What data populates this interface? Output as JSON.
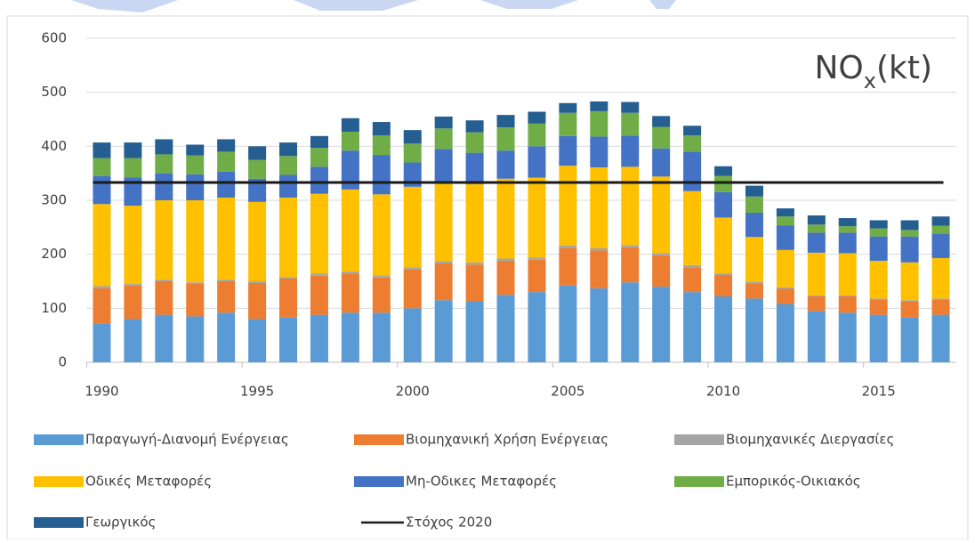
{
  "chart_data": {
    "type": "stacked_bar",
    "title": "NOx(kt)",
    "x": [
      1990,
      1991,
      1992,
      1993,
      1994,
      1995,
      1996,
      1997,
      1998,
      1999,
      2000,
      2001,
      2002,
      2003,
      2004,
      2005,
      2006,
      2007,
      2008,
      2009,
      2010,
      2011,
      2012,
      2013,
      2014,
      2015,
      2016,
      2017
    ],
    "xlim": [
      1989.5,
      2017.5
    ],
    "xticks": [
      1990,
      1995,
      2000,
      2005,
      2010,
      2015
    ],
    "ylim": [
      0,
      600
    ],
    "yticks": [
      0,
      100,
      200,
      300,
      400,
      500,
      600
    ],
    "grid": true,
    "legend": "bottom",
    "series": [
      {
        "name": "Παραγωγή-Διανομή Ενέργειας",
        "color": "#5b9bd5",
        "values": [
          72,
          80,
          88,
          85,
          92,
          80,
          83,
          88,
          92,
          92,
          100,
          115,
          113,
          125,
          130,
          142,
          137,
          148,
          140,
          130,
          122,
          118,
          108,
          95,
          92,
          88,
          83,
          88
        ]
      },
      {
        "name": "Βιομηχανική Χρήση Ενέργειας",
        "color": "#ed7d31",
        "values": [
          65,
          62,
          62,
          60,
          58,
          67,
          72,
          72,
          72,
          65,
          72,
          68,
          68,
          63,
          60,
          70,
          70,
          65,
          58,
          46,
          40,
          28,
          28,
          27,
          30,
          28,
          30,
          28
        ]
      },
      {
        "name": "Βιομηχανικές Διεργασίες",
        "color": "#a5a5a5",
        "values": [
          4,
          3,
          3,
          3,
          3,
          3,
          3,
          4,
          4,
          4,
          4,
          4,
          4,
          4,
          4,
          4,
          4,
          4,
          4,
          4,
          3,
          3,
          3,
          2,
          2,
          2,
          2,
          2
        ]
      },
      {
        "name": "Οδικές Μεταφορές",
        "color": "#ffc000",
        "values": [
          152,
          145,
          147,
          152,
          152,
          147,
          147,
          148,
          152,
          150,
          149,
          148,
          145,
          148,
          148,
          148,
          150,
          145,
          142,
          137,
          103,
          83,
          69,
          79,
          78,
          70,
          70,
          75
        ]
      },
      {
        "name": "Μη-Οδικες Μεταφορές",
        "color": "#4472c4",
        "values": [
          52,
          52,
          50,
          48,
          48,
          43,
          42,
          50,
          72,
          73,
          45,
          60,
          58,
          52,
          58,
          55,
          57,
          58,
          52,
          73,
          47,
          45,
          45,
          37,
          38,
          45,
          48,
          45
        ]
      },
      {
        "name": "Εμπορικός-Οικιακός",
        "color": "#70ad47",
        "values": [
          33,
          36,
          35,
          35,
          37,
          35,
          35,
          35,
          35,
          36,
          35,
          38,
          38,
          43,
          42,
          43,
          47,
          42,
          40,
          30,
          30,
          30,
          17,
          15,
          12,
          15,
          12,
          15
        ]
      },
      {
        "name": "Γεωργικός",
        "color": "#255e91",
        "values": [
          29,
          29,
          28,
          20,
          23,
          25,
          25,
          22,
          25,
          25,
          25,
          22,
          22,
          23,
          22,
          18,
          18,
          20,
          20,
          18,
          18,
          20,
          15,
          17,
          15,
          15,
          18,
          17
        ]
      }
    ],
    "target_line": {
      "name": "Στόχος 2020",
      "color": "#1a1a1a",
      "value": 333
    }
  }
}
